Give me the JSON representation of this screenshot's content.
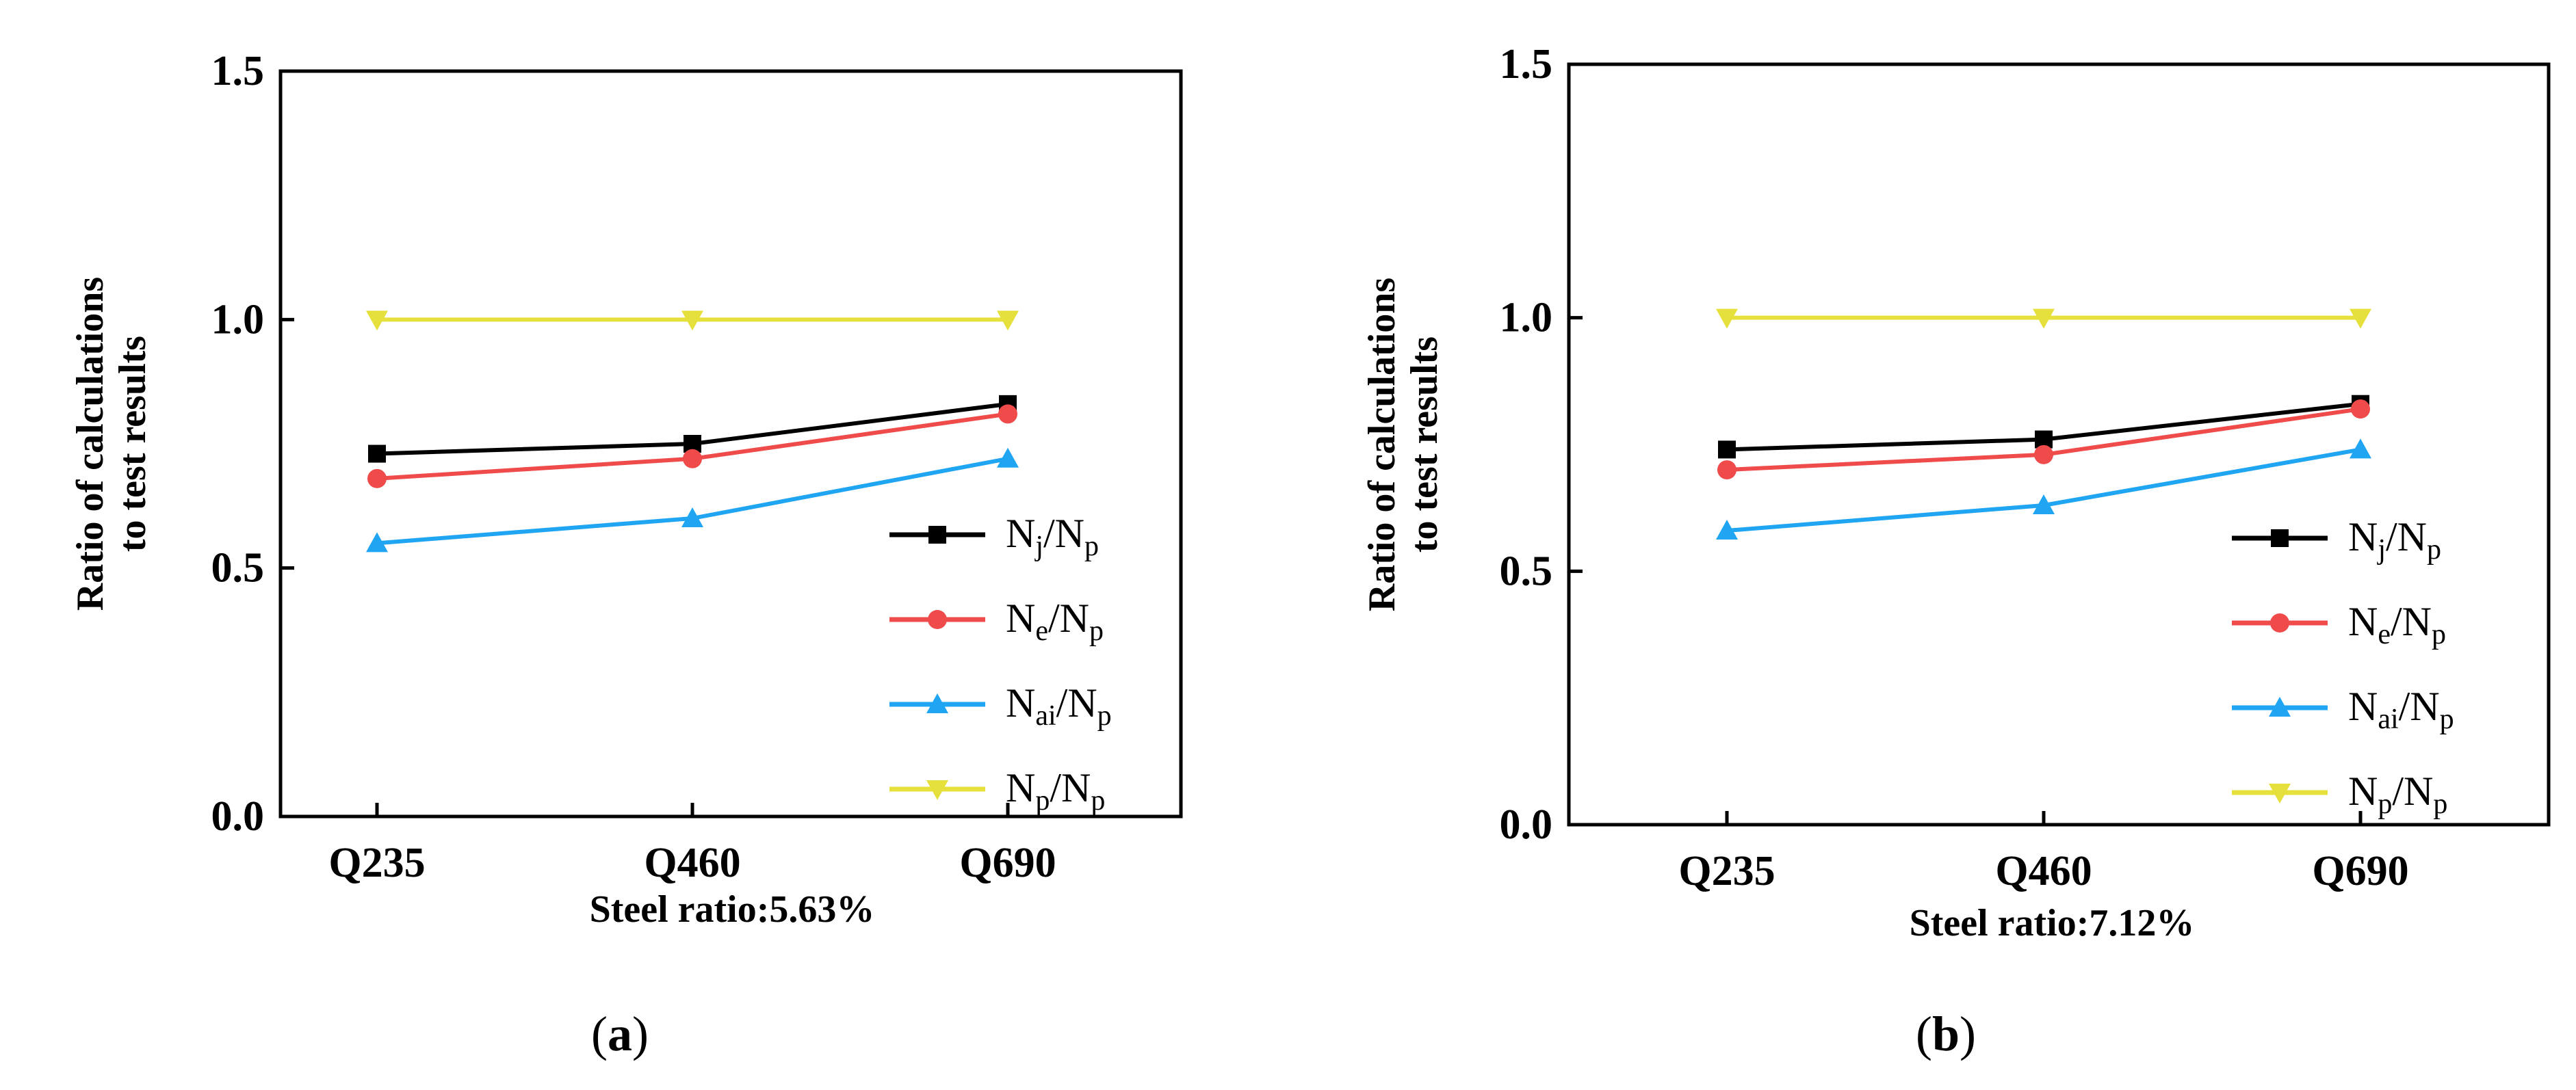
{
  "chart_data": [
    {
      "id": "a",
      "type": "line",
      "panel_label": "a",
      "categories": [
        "Q235",
        "Q460",
        "Q690"
      ],
      "xlabel": "Steel ratio:5.63%",
      "ylabel_lines": [
        "Ratio of calculations",
        "to test results"
      ],
      "ylim": [
        0.0,
        1.5
      ],
      "yticks": [
        "0.0",
        "0.5",
        "1.0",
        "1.5"
      ],
      "ytick_values": [
        0.0,
        0.5,
        1.0,
        1.5
      ],
      "grid": false,
      "legend_position": "right",
      "series": [
        {
          "name": "Nj/Np",
          "num": "N",
          "num_sub": "j",
          "den": "N",
          "den_sub": "p",
          "color": "#000000",
          "marker": "square",
          "values": [
            0.73,
            0.75,
            0.83
          ]
        },
        {
          "name": "Ne/Np",
          "num": "N",
          "num_sub": "e",
          "den": "N",
          "den_sub": "p",
          "color": "#ef4b4b",
          "marker": "circle",
          "values": [
            0.68,
            0.72,
            0.81
          ]
        },
        {
          "name": "Nai/Np",
          "num": "N",
          "num_sub": "ai",
          "den": "N",
          "den_sub": "p",
          "color": "#1fa5f2",
          "marker": "triangle-up",
          "values": [
            0.55,
            0.6,
            0.72
          ]
        },
        {
          "name": "Np/Np",
          "num": "N",
          "num_sub": "p",
          "den": "N",
          "den_sub": "p",
          "color": "#e6e03c",
          "marker": "triangle-down",
          "values": [
            1.0,
            1.0,
            1.0
          ]
        }
      ]
    },
    {
      "id": "b",
      "type": "line",
      "panel_label": "b",
      "categories": [
        "Q235",
        "Q460",
        "Q690"
      ],
      "xlabel": "Steel ratio:7.12%",
      "ylabel_lines": [
        "Ratio of calculations",
        "to test results"
      ],
      "ylim": [
        0.0,
        1.5
      ],
      "yticks": [
        "0.0",
        "0.5",
        "1.0",
        "1.5"
      ],
      "ytick_values": [
        0.0,
        0.5,
        1.0,
        1.5
      ],
      "grid": false,
      "legend_position": "right",
      "series": [
        {
          "name": "Nj/Np",
          "num": "N",
          "num_sub": "j",
          "den": "N",
          "den_sub": "p",
          "color": "#000000",
          "marker": "square",
          "values": [
            0.74,
            0.76,
            0.83
          ]
        },
        {
          "name": "Ne/Np",
          "num": "N",
          "num_sub": "e",
          "den": "N",
          "den_sub": "p",
          "color": "#ef4b4b",
          "marker": "circle",
          "values": [
            0.7,
            0.73,
            0.82
          ]
        },
        {
          "name": "Nai/Np",
          "num": "N",
          "num_sub": "ai",
          "den": "N",
          "den_sub": "p",
          "color": "#1fa5f2",
          "marker": "triangle-up",
          "values": [
            0.58,
            0.63,
            0.74
          ]
        },
        {
          "name": "Np/Np",
          "num": "N",
          "num_sub": "p",
          "den": "N",
          "den_sub": "p",
          "color": "#e6e03c",
          "marker": "triangle-down",
          "values": [
            1.0,
            1.0,
            1.0
          ]
        }
      ]
    }
  ]
}
